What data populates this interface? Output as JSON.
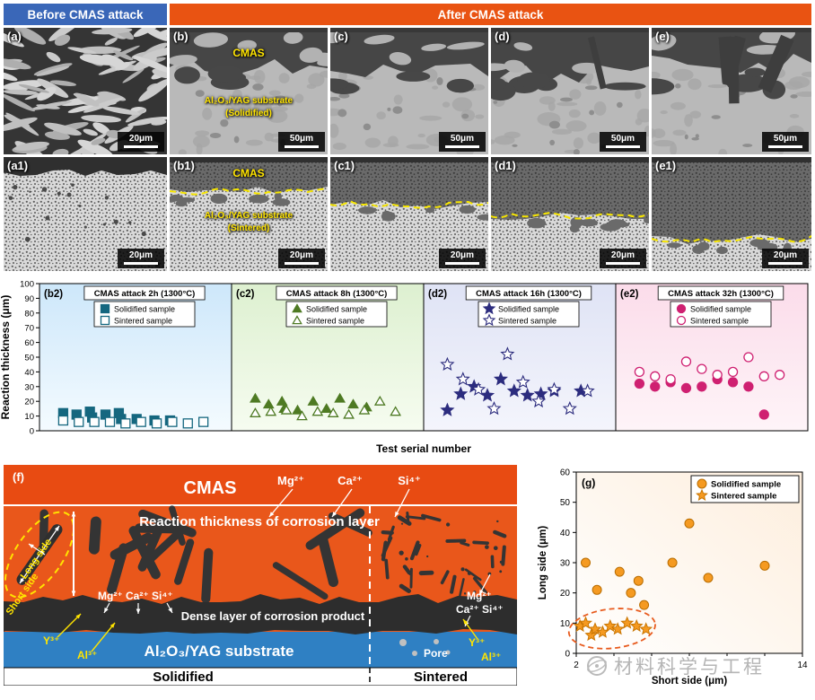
{
  "header": {
    "before": "Before CMAS attack",
    "after": "After CMAS attack",
    "before_color": "#3a67b8",
    "after_color": "#e95312"
  },
  "micrographs": {
    "row1": [
      {
        "label": "(a)",
        "scale": "20μm",
        "type": "lamellar"
      },
      {
        "label": "(b)",
        "scale": "50μm",
        "type": "cmas",
        "depth": 0.32,
        "cmas_label": "CMAS",
        "substrate_label": "Al₂O₃/YAG substrate",
        "substrate_sub": "(Solidified)"
      },
      {
        "label": "(c)",
        "scale": "50μm",
        "type": "cmas",
        "depth": 0.34
      },
      {
        "label": "(d)",
        "scale": "50μm",
        "type": "cmas",
        "depth": 0.37
      },
      {
        "label": "(e)",
        "scale": "50μm",
        "type": "cmas",
        "depth": 0.3
      }
    ],
    "row2": [
      {
        "label": "(a1)",
        "scale": "20μm",
        "type": "sintered"
      },
      {
        "label": "(b1)",
        "scale": "20μm",
        "type": "sintered-cmas",
        "depth": 0.3,
        "cmas_label": "CMAS",
        "substrate_label": "Al₂O₃/YAG substrate",
        "substrate_sub": "(Sintered)"
      },
      {
        "label": "(c1)",
        "scale": "20μm",
        "type": "sintered-cmas",
        "depth": 0.42
      },
      {
        "label": "(d1)",
        "scale": "20μm",
        "type": "sintered-cmas",
        "depth": 0.52
      },
      {
        "label": "(e1)",
        "scale": "20μm",
        "type": "sintered-cmas",
        "depth": 0.72
      }
    ]
  },
  "chart_data": [
    {
      "type": "scatter",
      "title": "Reaction thickness of solidified and sintered samples vs test serial number",
      "ylabel": "Reaction thickness (μm)",
      "xlabel": "Test serial number",
      "ylim": [
        0,
        100
      ],
      "yticks": [
        0,
        10,
        20,
        30,
        40,
        50,
        60,
        70,
        80,
        90,
        100
      ],
      "xlim": [
        0,
        7.5
      ],
      "panels": [
        {
          "label": "(b2)",
          "title": "CMAS attack 2h (1300°C)",
          "marker": "square",
          "color": "#15677f",
          "bg_top": "#cde7fa",
          "bg_bottom": "#f4fbff",
          "series": [
            {
              "name": "Solidified sample",
              "filled": true,
              "points": [
                [
                  0.5,
                  12
                ],
                [
                  1.1,
                  11
                ],
                [
                  1.7,
                  13
                ],
                [
                  1.8,
                  9
                ],
                [
                  2.4,
                  11
                ],
                [
                  3.0,
                  12
                ],
                [
                  3.1,
                  8
                ],
                [
                  3.8,
                  8
                ],
                [
                  4.6,
                  7
                ],
                [
                  5.3,
                  7
                ]
              ]
            },
            {
              "name": "Sintered sample",
              "filled": false,
              "points": [
                [
                  0.5,
                  7
                ],
                [
                  1.2,
                  6
                ],
                [
                  1.9,
                  6
                ],
                [
                  2.6,
                  6
                ],
                [
                  3.3,
                  5
                ],
                [
                  4.0,
                  6
                ],
                [
                  4.7,
                  5
                ],
                [
                  5.4,
                  6
                ],
                [
                  6.1,
                  5
                ],
                [
                  6.8,
                  6
                ]
              ]
            }
          ]
        },
        {
          "label": "(c2)",
          "title": "CMAS attack 8h (1300°C)",
          "marker": "triangle",
          "color": "#4e7a23",
          "bg_top": "#ddf0d0",
          "bg_bottom": "#f6fcf0",
          "series": [
            {
              "name": "Solidified sample",
              "filled": true,
              "points": [
                [
                  0.5,
                  22
                ],
                [
                  1.1,
                  18
                ],
                [
                  1.7,
                  20
                ],
                [
                  1.8,
                  15
                ],
                [
                  2.4,
                  14
                ],
                [
                  3.1,
                  20
                ],
                [
                  3.7,
                  15
                ],
                [
                  4.3,
                  22
                ],
                [
                  4.9,
                  18
                ],
                [
                  5.5,
                  16
                ]
              ]
            },
            {
              "name": "Sintered sample",
              "filled": false,
              "points": [
                [
                  0.5,
                  12
                ],
                [
                  1.2,
                  13
                ],
                [
                  1.9,
                  14
                ],
                [
                  2.6,
                  10
                ],
                [
                  3.3,
                  13
                ],
                [
                  4.0,
                  12
                ],
                [
                  4.7,
                  11
                ],
                [
                  5.4,
                  14
                ],
                [
                  6.1,
                  20
                ],
                [
                  6.8,
                  13
                ]
              ]
            }
          ]
        },
        {
          "label": "(d2)",
          "title": "CMAS attack 16h (1300°C)",
          "marker": "star",
          "color": "#2c2c7e",
          "bg_top": "#dfe3f5",
          "bg_bottom": "#f4f5fc",
          "series": [
            {
              "name": "Solidified sample",
              "filled": true,
              "points": [
                [
                  0.5,
                  14
                ],
                [
                  1.1,
                  25
                ],
                [
                  1.7,
                  30
                ],
                [
                  2.3,
                  24
                ],
                [
                  2.9,
                  35
                ],
                [
                  3.5,
                  27
                ],
                [
                  4.1,
                  24
                ],
                [
                  4.7,
                  25
                ],
                [
                  5.3,
                  27
                ],
                [
                  6.5,
                  27
                ]
              ]
            },
            {
              "name": "Sintered sample",
              "filled": false,
              "points": [
                [
                  0.5,
                  45
                ],
                [
                  1.2,
                  35
                ],
                [
                  1.9,
                  28
                ],
                [
                  2.6,
                  15
                ],
                [
                  3.2,
                  52
                ],
                [
                  3.9,
                  33
                ],
                [
                  4.6,
                  20
                ],
                [
                  5.3,
                  28
                ],
                [
                  6.0,
                  15
                ],
                [
                  6.8,
                  27
                ]
              ]
            }
          ]
        },
        {
          "label": "(e2)",
          "title": "CMAS attack 32h (1300°C)",
          "marker": "circle",
          "color": "#cf2071",
          "bg_top": "#fbdcea",
          "bg_bottom": "#fef4f8",
          "series": [
            {
              "name": "Solidified sample",
              "filled": true,
              "points": [
                [
                  0.5,
                  32
                ],
                [
                  1.2,
                  30
                ],
                [
                  1.9,
                  33
                ],
                [
                  2.6,
                  29
                ],
                [
                  3.3,
                  30
                ],
                [
                  4.0,
                  35
                ],
                [
                  4.7,
                  33
                ],
                [
                  5.4,
                  30
                ],
                [
                  6.1,
                  11
                ]
              ]
            },
            {
              "name": "Sintered sample",
              "filled": false,
              "points": [
                [
                  0.5,
                  40
                ],
                [
                  1.2,
                  37
                ],
                [
                  1.9,
                  35
                ],
                [
                  2.6,
                  47
                ],
                [
                  3.3,
                  42
                ],
                [
                  4.0,
                  38
                ],
                [
                  4.7,
                  40
                ],
                [
                  5.4,
                  50
                ],
                [
                  6.1,
                  37
                ],
                [
                  6.8,
                  38
                ]
              ]
            }
          ]
        }
      ]
    },
    {
      "type": "scatter",
      "label": "(g)",
      "xlabel": "Short side (μm)",
      "ylabel": "Long side (μm)",
      "xlim": [
        2,
        14
      ],
      "ylim": [
        0,
        60
      ],
      "xticks_labeled": [
        2,
        14
      ],
      "xticks_minor": [
        4,
        6,
        8,
        10,
        12
      ],
      "yticks": [
        0,
        10,
        20,
        30,
        40,
        50,
        60
      ],
      "series": [
        {
          "name": "Solidified sample",
          "marker": "circle",
          "color": "#f59a21",
          "points": [
            [
              2.5,
              30
            ],
            [
              3.1,
              21
            ],
            [
              4.3,
              27
            ],
            [
              4.9,
              20
            ],
            [
              5.3,
              24
            ],
            [
              5.6,
              16
            ],
            [
              7.1,
              30
            ],
            [
              8.0,
              43
            ],
            [
              9.0,
              25
            ],
            [
              12.0,
              29
            ]
          ]
        },
        {
          "name": "Sintered sample",
          "marker": "star",
          "color": "#f59a21",
          "points": [
            [
              2.2,
              9
            ],
            [
              2.5,
              10
            ],
            [
              2.8,
              6
            ],
            [
              3.0,
              8
            ],
            [
              3.4,
              7
            ],
            [
              3.8,
              9
            ],
            [
              4.2,
              8
            ],
            [
              4.7,
              10
            ],
            [
              5.2,
              9
            ],
            [
              5.7,
              8
            ]
          ]
        }
      ],
      "highlight_ellipse": {
        "cx": 3.9,
        "cy": 8.2,
        "rx": 2.3,
        "ry": 6.5,
        "color": "#e85b1e"
      }
    }
  ],
  "diagram_f": {
    "label": "(f)",
    "cmas": "CMAS",
    "top_ions": [
      "Mg²⁺",
      "Ca²⁺",
      "Si⁴⁺"
    ],
    "reaction_text": "Reaction thickness of corrosion layer",
    "dense_text": "Dense layer of corrosion product",
    "substrate_text": "Al₂O₃/YAG substrate",
    "pore": "Pore",
    "left_ions_in": "Mg²⁺ Ca²⁺ Si⁴⁺",
    "left_ion_y": "Y³⁺",
    "left_ion_al": "Al³⁺",
    "right_ion_mg": "Mg²⁺",
    "right_ions_casi": "Ca²⁺ Si⁴⁺",
    "right_ion_y": "Y³⁺",
    "right_ion_al": "Al³⁺",
    "long_side": "Long side",
    "short_side": "Short side",
    "solidified": "Solidified",
    "sintered": "Sintered",
    "orange": "#e9571b",
    "blue": "#2f80c3"
  },
  "watermark": {
    "text": "材料科学与工程"
  }
}
